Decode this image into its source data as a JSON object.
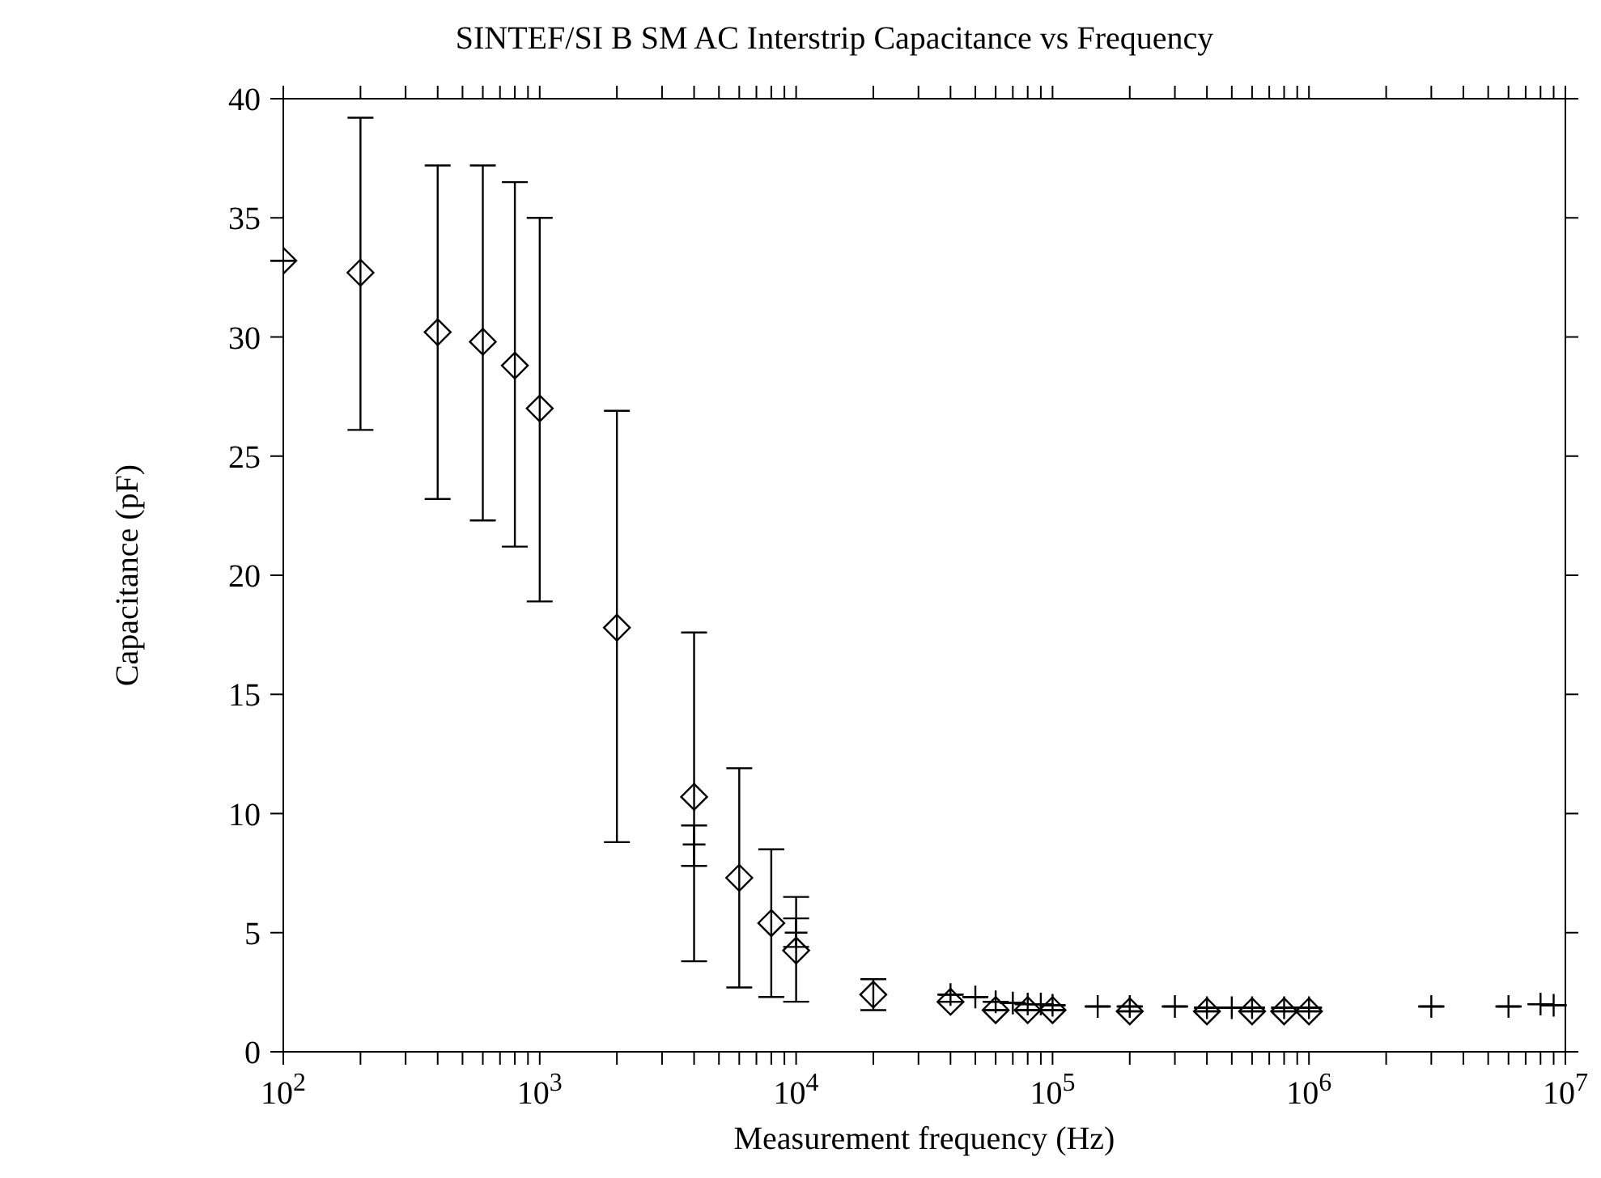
{
  "chart_data": {
    "type": "scatter",
    "title": "SINTEF/SI B SM AC Interstrip Capacitance vs Frequency",
    "xlabel": "Measurement frequency (Hz)",
    "ylabel": "Capacitance (pF)",
    "log": "x",
    "grid": false,
    "legend": false,
    "xlim": [
      100,
      10000000
    ],
    "ylim": [
      0,
      40
    ],
    "xticks": [
      {
        "value": 100,
        "label": "10$^{2}$"
      },
      {
        "value": 200,
        "label": null
      },
      {
        "value": 300,
        "label": null
      },
      {
        "value": 400,
        "label": null
      },
      {
        "value": 500,
        "label": null
      },
      {
        "value": 600,
        "label": null
      },
      {
        "value": 700,
        "label": null
      },
      {
        "value": 800,
        "label": null
      },
      {
        "value": 900,
        "label": null
      },
      {
        "value": 1000,
        "label": "10$^{3}$"
      },
      {
        "value": 2000,
        "label": null
      },
      {
        "value": 3000,
        "label": null
      },
      {
        "value": 4000,
        "label": null
      },
      {
        "value": 5000,
        "label": null
      },
      {
        "value": 6000,
        "label": null
      },
      {
        "value": 7000,
        "label": null
      },
      {
        "value": 8000,
        "label": null
      },
      {
        "value": 9000,
        "label": null
      },
      {
        "value": 10000,
        "label": "10$^{4}$"
      },
      {
        "value": 20000,
        "label": null
      },
      {
        "value": 30000,
        "label": null
      },
      {
        "value": 40000,
        "label": null
      },
      {
        "value": 50000,
        "label": null
      },
      {
        "value": 60000,
        "label": null
      },
      {
        "value": 70000,
        "label": null
      },
      {
        "value": 80000,
        "label": null
      },
      {
        "value": 90000,
        "label": null
      },
      {
        "value": 100000,
        "label": "10$^{5}$"
      },
      {
        "value": 200000,
        "label": null
      },
      {
        "value": 300000,
        "label": null
      },
      {
        "value": 400000,
        "label": null
      },
      {
        "value": 500000,
        "label": null
      },
      {
        "value": 600000,
        "label": null
      },
      {
        "value": 700000,
        "label": null
      },
      {
        "value": 800000,
        "label": null
      },
      {
        "value": 900000,
        "label": null
      },
      {
        "value": 1000000,
        "label": "10$^{6}$"
      },
      {
        "value": 2000000,
        "label": null
      },
      {
        "value": 3000000,
        "label": null
      },
      {
        "value": 4000000,
        "label": null
      },
      {
        "value": 5000000,
        "label": null
      },
      {
        "value": 6000000,
        "label": null
      },
      {
        "value": 7000000,
        "label": null
      },
      {
        "value": 8000000,
        "label": null
      },
      {
        "value": 9000000,
        "label": null
      },
      {
        "value": 10000000,
        "label": "10$^{7}$"
      }
    ],
    "yticks": [
      0,
      5,
      10,
      15,
      20,
      25,
      30,
      35,
      40
    ],
    "series": [
      {
        "marker": "cross",
        "color": "#000000",
        "x": [
          4000,
          10000,
          40000,
          50000,
          60000,
          70000,
          80000,
          90000,
          100000,
          150000,
          200000,
          300000,
          400000,
          500000,
          600000,
          800000,
          1000000,
          3000000,
          6000000,
          8000000,
          9000000
        ],
        "values": [
          8.7,
          5.0,
          2.4,
          2.3,
          2.1,
          2.05,
          2.0,
          2.0,
          1.95,
          1.9,
          1.9,
          1.9,
          1.85,
          1.85,
          1.85,
          1.85,
          1.85,
          1.9,
          1.9,
          2.0,
          1.95
        ],
        "errors": [
          [
            7.8,
            9.5
          ],
          [
            4.4,
            5.6
          ],
          null,
          null,
          null,
          null,
          null,
          null,
          null,
          null,
          null,
          null,
          null,
          null,
          null,
          null,
          null,
          null,
          null,
          null,
          null
        ]
      },
      {
        "marker": "diamond",
        "color": "#000000",
        "x": [
          100,
          200,
          400,
          600,
          800,
          1000,
          2000,
          4000,
          6000,
          8000,
          10000,
          20000,
          40000,
          60000,
          80000,
          100000,
          200000,
          400000,
          600000,
          800000,
          1000000
        ],
        "values": [
          33.2,
          32.7,
          30.2,
          29.8,
          28.8,
          27.0,
          17.8,
          10.7,
          7.3,
          5.4,
          4.25,
          2.4,
          2.1,
          1.75,
          1.75,
          1.75,
          1.7,
          1.7,
          1.7,
          1.7,
          1.7
        ],
        "errors": [
          null,
          [
            26.1,
            39.2
          ],
          [
            23.2,
            37.2
          ],
          [
            22.3,
            37.2
          ],
          [
            21.2,
            36.5
          ],
          [
            18.9,
            35.0
          ],
          [
            8.8,
            26.9
          ],
          [
            3.8,
            17.6
          ],
          [
            2.7,
            11.9
          ],
          [
            2.3,
            8.5
          ],
          [
            2.1,
            6.5
          ],
          [
            1.75,
            3.05
          ],
          null,
          null,
          null,
          null,
          null,
          null,
          null,
          null,
          null
        ]
      }
    ]
  }
}
